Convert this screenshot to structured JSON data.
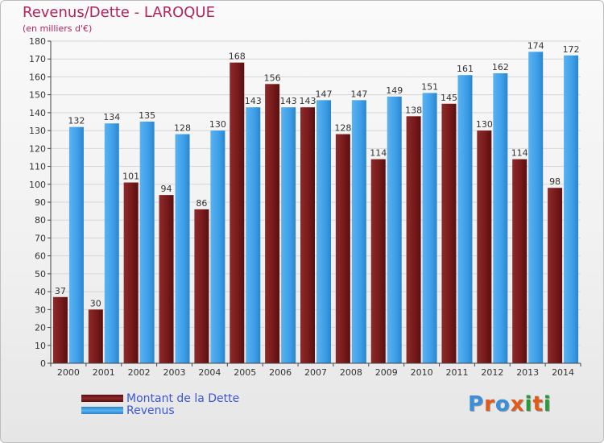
{
  "header": {
    "title": "Revenus/Dette - LAROQUE",
    "subtitle": "(en milliers d'€)"
  },
  "legend": {
    "dette_label": "Montant de la Dette",
    "revenus_label": "Revenus"
  },
  "logo": {
    "text": "Proxiti",
    "letter_colors": [
      "#3a8fd8",
      "#e05a1c",
      "#3a8fd8",
      "#e05a1c",
      "#2a9a3a",
      "#e05a1c",
      "#2a9a3a"
    ]
  },
  "colors": {
    "dette": "#7a1a1a",
    "revenus": "#3d9ee8",
    "title": "#b5225c",
    "legend_text": "#3a56d4"
  },
  "chart_data": {
    "type": "bar",
    "title": "Revenus/Dette - LAROQUE",
    "subtitle": "(en milliers d'€)",
    "categories": [
      "2000",
      "2001",
      "2002",
      "2003",
      "2004",
      "2005",
      "2006",
      "2007",
      "2008",
      "2009",
      "2010",
      "2011",
      "2012",
      "2013",
      "2014"
    ],
    "series": [
      {
        "name": "Montant de la Dette",
        "values": [
          37,
          30,
          101,
          94,
          86,
          168,
          156,
          143,
          128,
          114,
          138,
          145,
          130,
          114,
          98
        ]
      },
      {
        "name": "Revenus",
        "values": [
          132,
          134,
          135,
          128,
          130,
          143,
          143,
          147,
          147,
          149,
          151,
          161,
          162,
          174,
          172
        ]
      }
    ],
    "ylim": [
      0,
      180
    ],
    "yticks": [
      0,
      10,
      20,
      30,
      40,
      50,
      60,
      70,
      80,
      90,
      100,
      110,
      120,
      130,
      140,
      150,
      160,
      170,
      180
    ],
    "grid": true,
    "legend_position": "bottom-left"
  }
}
